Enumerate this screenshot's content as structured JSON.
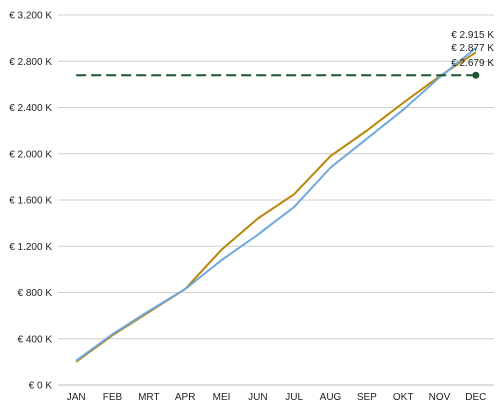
{
  "chart_data": {
    "type": "line",
    "categories": [
      "JAN",
      "FEB",
      "MRT",
      "APR",
      "MEI",
      "JUN",
      "JUL",
      "AUG",
      "SEP",
      "OKT",
      "NOV",
      "DEC"
    ],
    "ylim": [
      0,
      3200
    ],
    "yticks": [
      {
        "value": 0,
        "label": "€ 0 K"
      },
      {
        "value": 400,
        "label": "€ 400 K"
      },
      {
        "value": 800,
        "label": "€ 800 K"
      },
      {
        "value": 1200,
        "label": "€ 1.200 K"
      },
      {
        "value": 1600,
        "label": "€ 1.600 K"
      },
      {
        "value": 2000,
        "label": "€ 2.000 K"
      },
      {
        "value": 2400,
        "label": "€ 2.400 K"
      },
      {
        "value": 2800,
        "label": "€ 2.800 K"
      },
      {
        "value": 3200,
        "label": "€ 3.200 K"
      }
    ],
    "grid": true,
    "legend": "none",
    "series": [
      {
        "style": "solid",
        "color": "#b8860b",
        "values": [
          200,
          430,
          630,
          830,
          1170,
          1440,
          1650,
          1980,
          2200,
          2440,
          2670,
          2877
        ],
        "end_label": "€ 2.877 K"
      },
      {
        "style": "solid",
        "color": "#6fa8dc",
        "values": [
          210,
          440,
          640,
          830,
          1080,
          1300,
          1540,
          1880,
          2130,
          2380,
          2660,
          2915
        ],
        "end_label": "€ 2.915 K"
      },
      {
        "style": "dashed",
        "color": "#1e5631",
        "values": [
          2679,
          2679,
          2679,
          2679,
          2679,
          2679,
          2679,
          2679,
          2679,
          2679,
          2679,
          2679
        ],
        "end_label": "€ 2.679 K",
        "end_marker": true
      }
    ]
  }
}
